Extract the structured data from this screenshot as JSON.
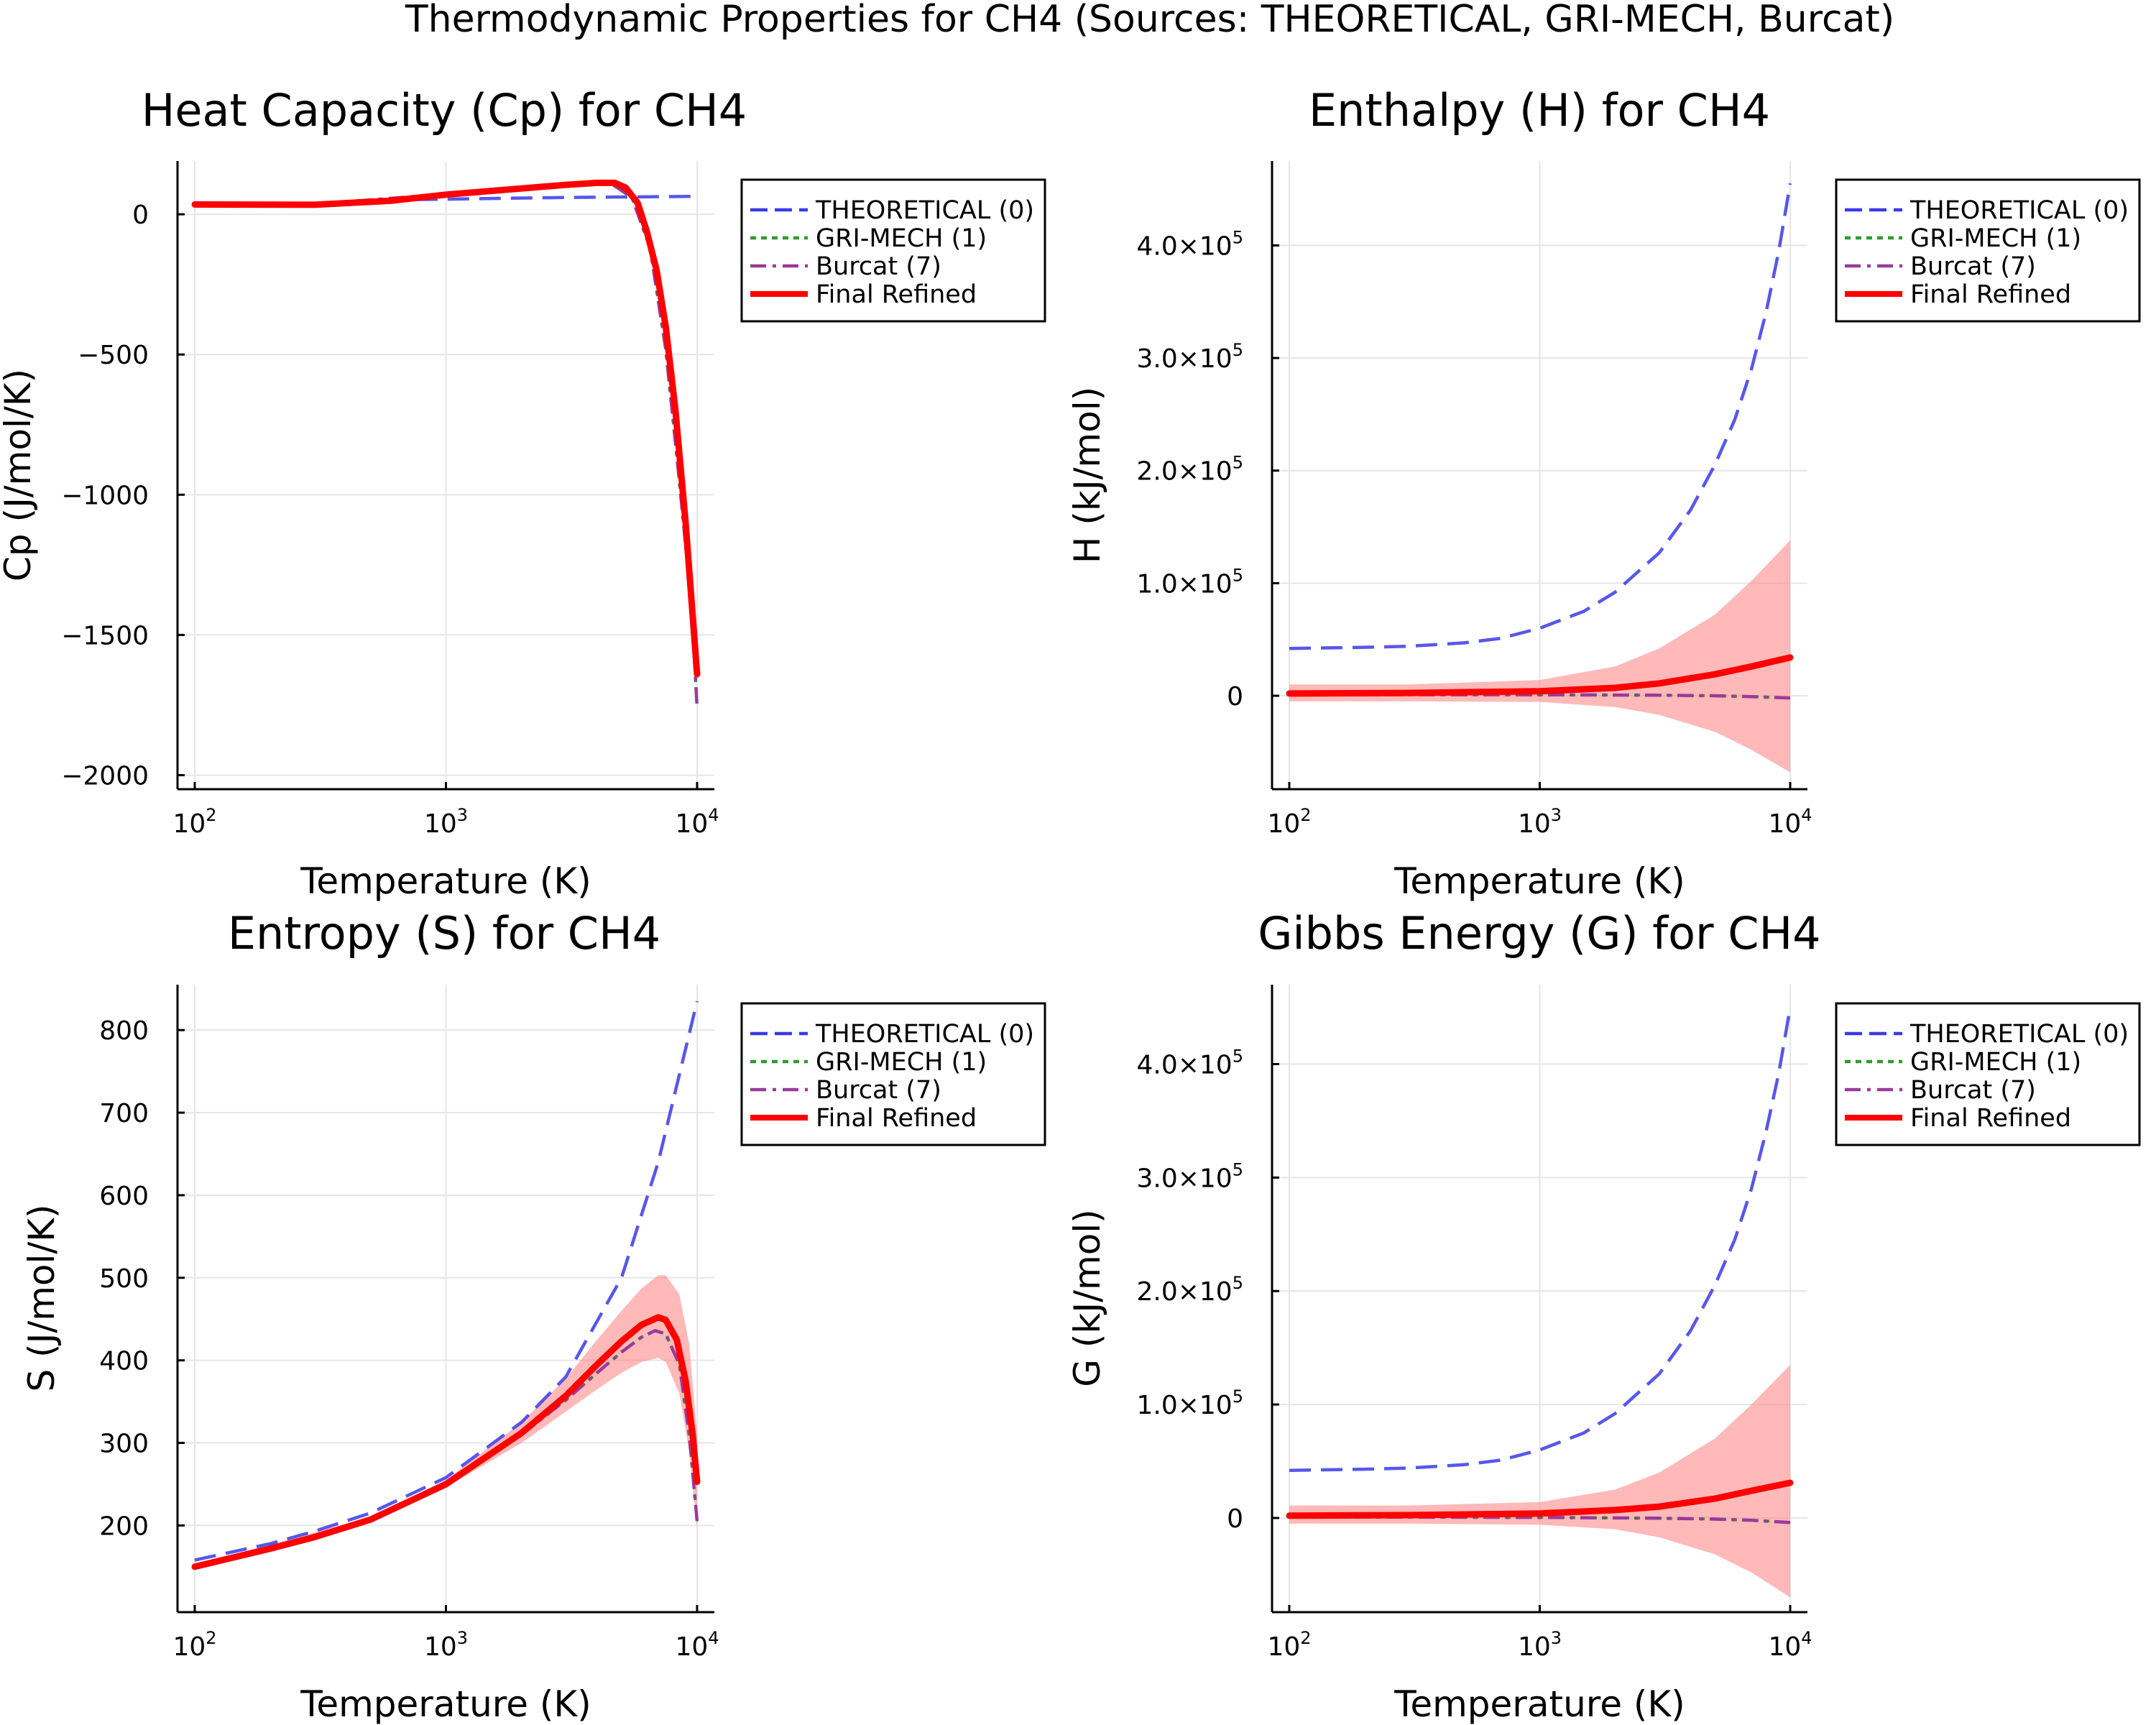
{
  "figure_title": "Thermodynamic Properties for CH4 (Sources: THEORETICAL, GRI-MECH, Burcat)",
  "colors": {
    "theoretical": "#3a3ae8",
    "grimech": "#2e9a2e",
    "burcat": "#9a3a9a",
    "final": "#ff0000",
    "band": "#ff7f7f"
  },
  "legend": [
    "THEORETICAL (0)",
    "GRI-MECH (1)",
    "Burcat (7)",
    "Final Refined"
  ],
  "chart_data": [
    {
      "type": "line",
      "title": "Heat Capacity (Cp) for CH4",
      "xlabel": "Temperature (K)",
      "ylabel": "Cp (J/mol/K)",
      "xscale": "log",
      "xlim": [
        100,
        10000
      ],
      "ylim": [
        -2050,
        190
      ],
      "x_ticks": [
        100,
        1000,
        10000
      ],
      "x_tick_labels": [
        [
          "10",
          "2"
        ],
        [
          "10",
          "3"
        ],
        [
          "10",
          "4"
        ]
      ],
      "y_ticks": [
        0,
        -500,
        -1000,
        -1500,
        -2000
      ],
      "y_tick_labels": [
        "0",
        "−500",
        "−1000",
        "−1500",
        "−2000"
      ],
      "grid": true,
      "legend_position": "outside-top-right",
      "series": [
        {
          "name": "THEORETICAL (0)",
          "style": "dash",
          "x": [
            100,
            300,
            700,
            1000,
            3000,
            10000
          ],
          "y": [
            36,
            36,
            52,
            54,
            60,
            64
          ]
        },
        {
          "name": "GRI-MECH (1)",
          "style": "dot",
          "x": [
            100,
            300,
            1000,
            3000,
            4500,
            5500,
            6500,
            7500,
            8500,
            9500,
            10000
          ],
          "y": [
            35,
            36,
            72,
            105,
            112,
            60,
            -120,
            -480,
            -950,
            -1400,
            -1760
          ]
        },
        {
          "name": "Burcat (7)",
          "style": "dashdot",
          "x": [
            100,
            300,
            1000,
            3000,
            4500,
            5500,
            6500,
            7500,
            8500,
            9500,
            10000
          ],
          "y": [
            35,
            36,
            72,
            105,
            112,
            60,
            -120,
            -480,
            -950,
            -1400,
            -1760
          ]
        },
        {
          "name": "Final Refined",
          "style": "solid",
          "x": [
            100,
            300,
            600,
            1000,
            2000,
            3000,
            4000,
            4700,
            5200,
            5800,
            6300,
            6900,
            7500,
            8200,
            9000,
            9600,
            10000
          ],
          "y": [
            35,
            34,
            48,
            70,
            92,
            105,
            112,
            112,
            95,
            40,
            -60,
            -200,
            -400,
            -700,
            -1100,
            -1430,
            -1640
          ]
        }
      ]
    },
    {
      "type": "line",
      "title": "Enthalpy (H) for CH4",
      "xlabel": "Temperature (K)",
      "ylabel": "H (kJ/mol)",
      "xscale": "log",
      "xlim": [
        100,
        10000
      ],
      "ylim": [
        -83000,
        475000
      ],
      "x_ticks": [
        100,
        1000,
        10000
      ],
      "x_tick_labels": [
        [
          "10",
          "2"
        ],
        [
          "10",
          "3"
        ],
        [
          "10",
          "4"
        ]
      ],
      "y_ticks": [
        0,
        100000,
        200000,
        300000,
        400000
      ],
      "y_tick_labels": [
        [
          "0",
          ""
        ],
        [
          "1.0×10",
          "5"
        ],
        [
          "2.0×10",
          "5"
        ],
        [
          "3.0×10",
          "5"
        ],
        [
          "4.0×10",
          "5"
        ]
      ],
      "grid": true,
      "legend_position": "outside-top-right",
      "series": [
        {
          "name": "THEORETICAL (0)",
          "style": "dash",
          "x": [
            100,
            200,
            300,
            500,
            700,
            1000,
            1500,
            2000,
            3000,
            4000,
            5000,
            6000,
            7000,
            8000,
            9000,
            10000
          ],
          "y": [
            42000,
            43000,
            44000,
            47000,
            51000,
            60000,
            75000,
            92000,
            127000,
            165000,
            205000,
            245000,
            290000,
            340000,
            395000,
            455000
          ]
        },
        {
          "name": "GRI-MECH (1)",
          "style": "dot",
          "x": [
            100,
            1000,
            3000,
            5000,
            7000,
            10000
          ],
          "y": [
            1000,
            800,
            500,
            0,
            -800,
            -2000
          ]
        },
        {
          "name": "Burcat (7)",
          "style": "dashdot",
          "x": [
            100,
            1000,
            3000,
            5000,
            7000,
            10000
          ],
          "y": [
            1000,
            800,
            500,
            0,
            -800,
            -2000
          ]
        },
        {
          "name": "Final Refined",
          "style": "solid",
          "x": [
            100,
            300,
            1000,
            2000,
            3000,
            5000,
            7000,
            10000
          ],
          "y": [
            2000,
            2500,
            4000,
            7000,
            11000,
            19000,
            26000,
            34000
          ]
        }
      ],
      "band": {
        "x": [
          100,
          300,
          1000,
          2000,
          3000,
          5000,
          7000,
          10000
        ],
        "lower": [
          -5000,
          -5000,
          -5500,
          -10000,
          -17000,
          -32000,
          -48000,
          -68000
        ],
        "upper": [
          10000,
          10000,
          14000,
          26000,
          42000,
          72000,
          102000,
          138000
        ]
      }
    },
    {
      "type": "line",
      "title": "Entropy (S) for CH4",
      "xlabel": "Temperature (K)",
      "ylabel": "S (J/mol/K)",
      "xscale": "log",
      "xlim": [
        100,
        10000
      ],
      "ylim": [
        95,
        855
      ],
      "x_ticks": [
        100,
        1000,
        10000
      ],
      "x_tick_labels": [
        [
          "10",
          "2"
        ],
        [
          "10",
          "3"
        ],
        [
          "10",
          "4"
        ]
      ],
      "y_ticks": [
        200,
        300,
        400,
        500,
        600,
        700,
        800
      ],
      "y_tick_labels": [
        "200",
        "300",
        "400",
        "500",
        "600",
        "700",
        "800"
      ],
      "grid": true,
      "legend_position": "outside-top-right",
      "series": [
        {
          "name": "THEORETICAL (0)",
          "style": "dash",
          "x": [
            100,
            200,
            300,
            500,
            1000,
            2000,
            3000,
            5000,
            7000,
            10000
          ],
          "y": [
            158,
            178,
            193,
            215,
            258,
            325,
            380,
            500,
            640,
            835
          ]
        },
        {
          "name": "GRI-MECH (1)",
          "style": "dot",
          "x": [
            100,
            200,
            300,
            500,
            1000,
            2000,
            3000,
            4000,
            5000,
            6000,
            6800,
            7500,
            8500,
            9300,
            10000
          ],
          "y": [
            150,
            172,
            186,
            207,
            250,
            310,
            352,
            385,
            410,
            428,
            436,
            432,
            395,
            310,
            205
          ]
        },
        {
          "name": "Burcat (7)",
          "style": "dashdot",
          "x": [
            100,
            200,
            300,
            500,
            1000,
            2000,
            3000,
            4000,
            5000,
            6000,
            6800,
            7500,
            8500,
            9300,
            10000
          ],
          "y": [
            150,
            172,
            186,
            207,
            250,
            310,
            352,
            385,
            410,
            428,
            436,
            432,
            395,
            310,
            205
          ]
        },
        {
          "name": "Final Refined",
          "style": "solid",
          "x": [
            100,
            200,
            300,
            500,
            1000,
            2000,
            3000,
            4000,
            5000,
            6000,
            7000,
            7500,
            8300,
            9000,
            9600,
            10000
          ],
          "y": [
            150,
            172,
            186,
            207,
            250,
            312,
            357,
            395,
            423,
            443,
            452,
            449,
            425,
            375,
            310,
            253
          ]
        }
      ],
      "band": {
        "x": [
          100,
          500,
          1000,
          2000,
          3000,
          4000,
          5000,
          6000,
          7000,
          7500,
          8500,
          9300,
          10000
        ],
        "lower": [
          148,
          205,
          246,
          300,
          338,
          365,
          385,
          398,
          403,
          398,
          360,
          290,
          195
        ],
        "upper": [
          152,
          210,
          255,
          325,
          378,
          425,
          460,
          487,
          503,
          503,
          480,
          420,
          310
        ]
      }
    },
    {
      "type": "line",
      "title": "Gibbs Energy (G) for CH4",
      "xlabel": "Temperature (K)",
      "ylabel": "G (kJ/mol)",
      "xscale": "log",
      "xlim": [
        100,
        10000
      ],
      "ylim": [
        -83000,
        470000
      ],
      "x_ticks": [
        100,
        1000,
        10000
      ],
      "x_tick_labels": [
        [
          "10",
          "2"
        ],
        [
          "10",
          "3"
        ],
        [
          "10",
          "4"
        ]
      ],
      "y_ticks": [
        0,
        100000,
        200000,
        300000,
        400000
      ],
      "y_tick_labels": [
        [
          "0",
          ""
        ],
        [
          "1.0×10",
          "5"
        ],
        [
          "2.0×10",
          "5"
        ],
        [
          "3.0×10",
          "5"
        ],
        [
          "4.0×10",
          "5"
        ]
      ],
      "grid": true,
      "legend_position": "outside-top-right",
      "series": [
        {
          "name": "THEORETICAL (0)",
          "style": "dash",
          "x": [
            100,
            200,
            300,
            500,
            700,
            1000,
            1500,
            2000,
            3000,
            4000,
            5000,
            6000,
            7000,
            8000,
            9000,
            10000
          ],
          "y": [
            42000,
            43000,
            44000,
            47000,
            51000,
            60000,
            75000,
            92000,
            127000,
            165000,
            205000,
            245000,
            290000,
            340000,
            392000,
            450000
          ]
        },
        {
          "name": "GRI-MECH (1)",
          "style": "dot",
          "x": [
            100,
            1000,
            3000,
            5000,
            7000,
            10000
          ],
          "y": [
            1000,
            500,
            -200,
            -1000,
            -2000,
            -4000
          ]
        },
        {
          "name": "Burcat (7)",
          "style": "dashdot",
          "x": [
            100,
            1000,
            3000,
            5000,
            7000,
            10000
          ],
          "y": [
            1000,
            500,
            -200,
            -1000,
            -2000,
            -4000
          ]
        },
        {
          "name": "Final Refined",
          "style": "solid",
          "x": [
            100,
            300,
            1000,
            2000,
            3000,
            5000,
            7000,
            10000
          ],
          "y": [
            2000,
            2500,
            4000,
            7000,
            10000,
            17000,
            24000,
            31000
          ]
        }
      ],
      "band": {
        "x": [
          100,
          300,
          1000,
          2000,
          3000,
          5000,
          7000,
          10000
        ],
        "lower": [
          -5000,
          -5000,
          -6000,
          -10000,
          -17000,
          -32000,
          -48000,
          -70000
        ],
        "upper": [
          11000,
          11000,
          14000,
          25000,
          40000,
          70000,
          100000,
          135000
        ]
      }
    }
  ]
}
